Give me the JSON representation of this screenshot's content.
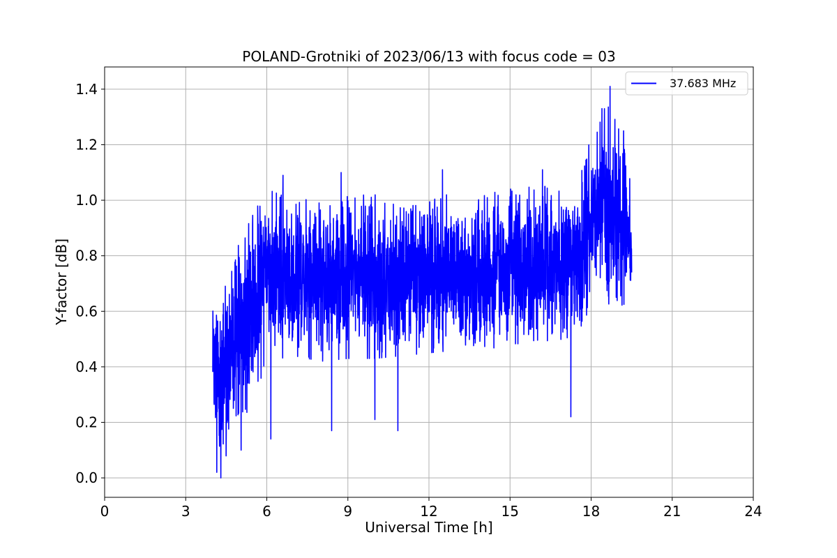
{
  "chart_data": {
    "type": "line",
    "title": "POLAND-Grotniki of 2023/06/13 with focus code = 03",
    "xlabel": "Universal Time [h]",
    "ylabel": "Y-factor [dB]",
    "xlim": [
      0,
      24
    ],
    "ylim": [
      -0.07,
      1.48
    ],
    "xticks": [
      0,
      3,
      6,
      9,
      12,
      15,
      18,
      21,
      24
    ],
    "xtick_labels": [
      "0",
      "3",
      "6",
      "9",
      "12",
      "15",
      "18",
      "21",
      "24"
    ],
    "yticks": [
      0.0,
      0.2,
      0.4,
      0.6,
      0.8,
      1.0,
      1.2,
      1.4
    ],
    "ytick_labels": [
      "0.0",
      "0.2",
      "0.4",
      "0.6",
      "0.8",
      "1.0",
      "1.2",
      "1.4"
    ],
    "grid": true,
    "legend_position": "top-right",
    "series": [
      {
        "name": "37.683 MHz",
        "color": "#0000ff",
        "x_range": [
          4.0,
          19.5
        ],
        "envelope": {
          "x": [
            4.0,
            4.25,
            4.5,
            5.0,
            5.5,
            6.0,
            7.0,
            8.0,
            9.0,
            10.0,
            11.0,
            12.0,
            13.0,
            14.0,
            15.0,
            16.0,
            17.0,
            17.5,
            18.0,
            18.5,
            19.0,
            19.5
          ],
          "upper": [
            0.6,
            0.64,
            0.73,
            0.85,
            0.95,
            1.04,
            1.0,
            1.02,
            1.03,
            1.02,
            0.97,
            1.0,
            1.03,
            1.02,
            1.04,
            1.05,
            1.05,
            1.1,
            1.22,
            1.36,
            1.27,
            1.1
          ],
          "lower": [
            0.15,
            0.04,
            0.08,
            0.22,
            0.25,
            0.42,
            0.44,
            0.42,
            0.43,
            0.43,
            0.44,
            0.45,
            0.46,
            0.46,
            0.48,
            0.49,
            0.5,
            0.52,
            0.62,
            0.66,
            0.55,
            0.6
          ]
        },
        "extremes": [
          {
            "x": 4.3,
            "y": 0.0
          },
          {
            "x": 4.15,
            "y": 0.02
          },
          {
            "x": 5.05,
            "y": 0.1
          },
          {
            "x": 6.15,
            "y": 0.14
          },
          {
            "x": 8.4,
            "y": 0.17
          },
          {
            "x": 10.0,
            "y": 0.21
          },
          {
            "x": 10.85,
            "y": 0.17
          },
          {
            "x": 17.25,
            "y": 0.22
          },
          {
            "x": 18.7,
            "y": 1.41
          },
          {
            "x": 18.4,
            "y": 1.33
          },
          {
            "x": 19.2,
            "y": 1.25
          },
          {
            "x": 6.6,
            "y": 1.09
          },
          {
            "x": 8.75,
            "y": 1.1
          },
          {
            "x": 12.5,
            "y": 1.11
          },
          {
            "x": 16.2,
            "y": 1.11
          }
        ]
      }
    ]
  }
}
